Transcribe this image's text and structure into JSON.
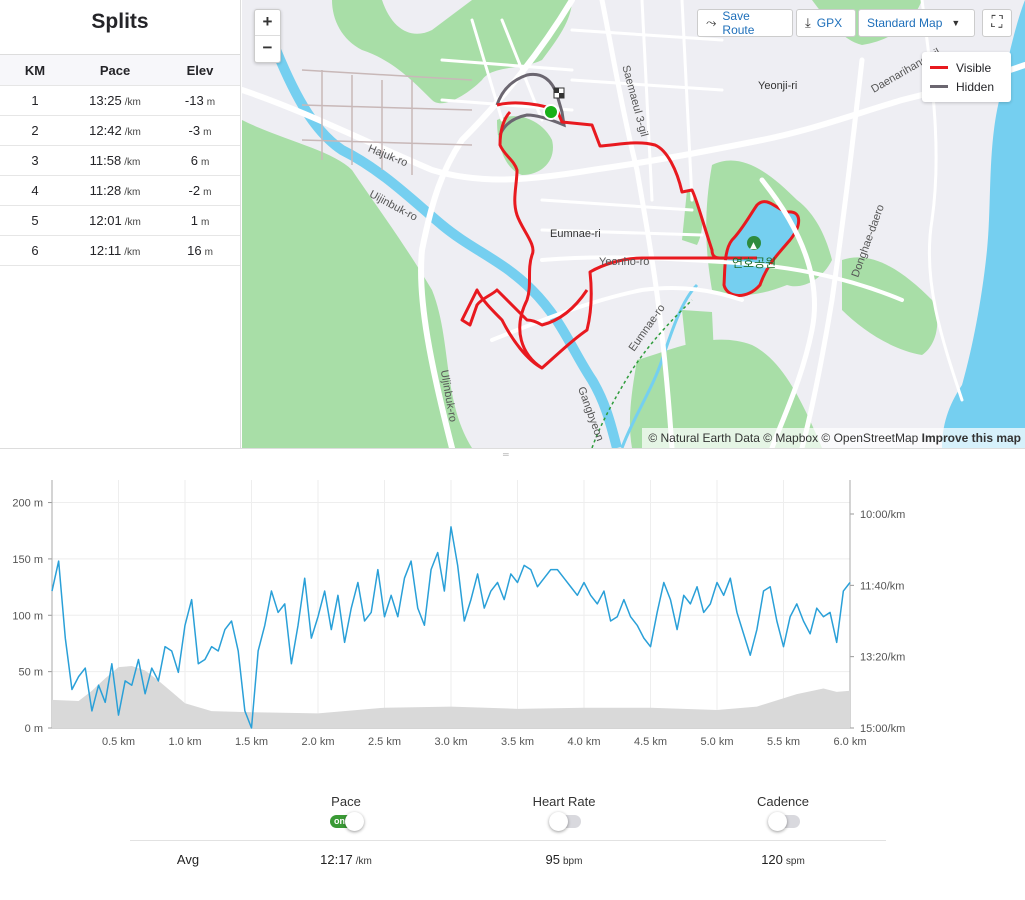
{
  "splits": {
    "title": "Splits",
    "headers": [
      "KM",
      "Pace",
      "Elev"
    ],
    "rows": [
      {
        "km": "1",
        "pace": "13:25",
        "pace_unit": "/km",
        "elev": "-13",
        "elev_unit": "m"
      },
      {
        "km": "2",
        "pace": "12:42",
        "pace_unit": "/km",
        "elev": "-3",
        "elev_unit": "m"
      },
      {
        "km": "3",
        "pace": "11:58",
        "pace_unit": "/km",
        "elev": "6",
        "elev_unit": "m"
      },
      {
        "km": "4",
        "pace": "11:28",
        "pace_unit": "/km",
        "elev": "-2",
        "elev_unit": "m"
      },
      {
        "km": "5",
        "pace": "12:01",
        "pace_unit": "/km",
        "elev": "1",
        "elev_unit": "m"
      },
      {
        "km": "6",
        "pace": "12:11",
        "pace_unit": "/km",
        "elev": "16",
        "elev_unit": "m"
      }
    ]
  },
  "map": {
    "zoom_in": "+",
    "zoom_out": "−",
    "save_route": "Save Route",
    "gpx": "GPX",
    "map_style": "Standard Map",
    "legend": [
      {
        "label": "Visible",
        "color": "#e8191f"
      },
      {
        "label": "Hidden",
        "color": "#6b6670"
      }
    ],
    "attribution": "© Natural Earth Data © Mapbox © OpenStreetMap",
    "improve": "Improve this map",
    "labels": [
      "Hajuk-ro",
      "Uijinbuk-ro",
      "Eumnae-ri",
      "Yeonho-ro",
      "Saemaeul 3-gil",
      "Yeonji-ri",
      "Eumnae-ro",
      "Uljinbuk-ro",
      "Donghae-daero",
      "Daenarihang-gil",
      "Gangbyeon",
      "연호공원"
    ],
    "colors": {
      "route": "#e8191f",
      "hidden": "#6b6670",
      "water": "#75cff0",
      "park": "#a8dea7",
      "road": "#ffffff",
      "start": "#19b019"
    }
  },
  "chart_data": {
    "type": "area",
    "xlabel": "",
    "x_ticks": [
      "0.5 km",
      "1.0 km",
      "1.5 km",
      "2.0 km",
      "2.5 km",
      "3.0 km",
      "3.5 km",
      "4.0 km",
      "4.5 km",
      "5.0 km",
      "5.5 km",
      "6.0 km"
    ],
    "xlim": [
      0,
      6.0
    ],
    "y_left_ticks": [
      "0 m",
      "50 m",
      "100 m",
      "150 m",
      "200 m"
    ],
    "ylim_left": [
      0,
      220
    ],
    "y_right_ticks": [
      "10:00/km",
      "11:40/km",
      "13:20/km",
      "15:00/km"
    ],
    "series": [
      {
        "name": "Pace",
        "axis": "right",
        "color": "#2aa0d8",
        "x": [
          0,
          0.05,
          0.1,
          0.15,
          0.2,
          0.25,
          0.3,
          0.35,
          0.4,
          0.45,
          0.5,
          0.55,
          0.6,
          0.65,
          0.7,
          0.75,
          0.8,
          0.85,
          0.9,
          0.95,
          1.0,
          1.05,
          1.1,
          1.15,
          1.2,
          1.25,
          1.3,
          1.35,
          1.4,
          1.45,
          1.5,
          1.55,
          1.6,
          1.65,
          1.7,
          1.75,
          1.8,
          1.85,
          1.9,
          1.95,
          2.0,
          2.05,
          2.1,
          2.15,
          2.2,
          2.25,
          2.3,
          2.35,
          2.4,
          2.45,
          2.5,
          2.55,
          2.6,
          2.65,
          2.7,
          2.75,
          2.8,
          2.85,
          2.9,
          2.95,
          3.0,
          3.05,
          3.1,
          3.15,
          3.2,
          3.25,
          3.3,
          3.35,
          3.4,
          3.45,
          3.5,
          3.55,
          3.6,
          3.65,
          3.7,
          3.75,
          3.8,
          3.85,
          3.9,
          3.95,
          4.0,
          4.05,
          4.1,
          4.15,
          4.2,
          4.25,
          4.3,
          4.35,
          4.4,
          4.45,
          4.5,
          4.55,
          4.6,
          4.65,
          4.7,
          4.75,
          4.8,
          4.85,
          4.9,
          4.95,
          5.0,
          5.05,
          5.1,
          5.15,
          5.2,
          5.25,
          5.3,
          5.35,
          5.4,
          5.45,
          5.5,
          5.55,
          5.6,
          5.65,
          5.7,
          5.75,
          5.8,
          5.85,
          5.9,
          5.95,
          6.0
        ],
        "values": [
          11.8,
          11.1,
          12.9,
          14.1,
          13.8,
          13.6,
          14.6,
          14.0,
          14.4,
          13.5,
          14.7,
          13.9,
          14.0,
          13.4,
          14.2,
          13.6,
          13.9,
          13.1,
          13.2,
          13.7,
          12.6,
          12.0,
          13.5,
          13.4,
          13.1,
          13.2,
          12.7,
          12.5,
          13.2,
          14.6,
          15.0,
          13.2,
          12.6,
          11.8,
          12.3,
          12.1,
          13.5,
          12.6,
          11.5,
          12.9,
          12.4,
          11.8,
          12.7,
          11.9,
          13.0,
          12.2,
          11.6,
          12.5,
          12.3,
          11.3,
          12.4,
          11.9,
          12.4,
          11.5,
          11.1,
          12.2,
          12.6,
          11.3,
          10.9,
          11.8,
          10.3,
          11.2,
          12.5,
          12.0,
          11.4,
          12.2,
          11.8,
          11.6,
          12.0,
          11.4,
          11.6,
          11.2,
          11.3,
          11.7,
          11.5,
          11.3,
          11.3,
          11.5,
          11.7,
          11.9,
          11.6,
          11.9,
          12.1,
          11.8,
          12.5,
          12.4,
          12.0,
          12.4,
          12.6,
          12.9,
          13.1,
          12.3,
          11.6,
          12.0,
          12.7,
          11.9,
          12.1,
          11.7,
          12.3,
          12.1,
          11.6,
          11.9,
          11.5,
          12.3,
          12.8,
          13.3,
          12.7,
          11.8,
          11.7,
          12.5,
          13.1,
          12.4,
          12.1,
          12.5,
          12.8,
          12.2,
          12.4,
          12.3,
          13.0,
          11.8,
          11.6
        ],
        "unit": "min/km"
      },
      {
        "name": "Elevation",
        "axis": "left",
        "color": "#d9d9d9",
        "x": [
          0,
          0.2,
          0.3,
          0.4,
          0.5,
          0.6,
          0.7,
          0.8,
          0.9,
          1.0,
          1.2,
          1.5,
          2.0,
          2.5,
          3.0,
          3.5,
          4.0,
          4.5,
          5.0,
          5.3,
          5.6,
          5.8,
          5.9,
          6.0
        ],
        "values": [
          25,
          24,
          33,
          44,
          54,
          55,
          51,
          42,
          32,
          22,
          15,
          14,
          13,
          18,
          19,
          17,
          18,
          18,
          16,
          19,
          30,
          35,
          32,
          33
        ],
        "unit": "m"
      }
    ]
  },
  "stats": {
    "headers": [
      "Pace",
      "Heart Rate",
      "Cadence"
    ],
    "toggle_on_label": "on",
    "avg_label": "Avg",
    "pace": {
      "value": "12:17",
      "unit": "/km",
      "toggle": true
    },
    "heart_rate": {
      "value": "95",
      "unit": "bpm",
      "toggle": false
    },
    "cadence": {
      "value": "120",
      "unit": "spm",
      "toggle": false
    }
  }
}
